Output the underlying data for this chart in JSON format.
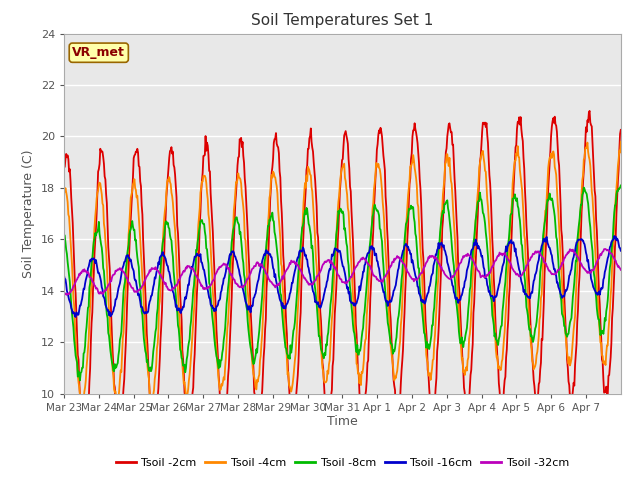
{
  "title": "Soil Temperatures Set 1",
  "xlabel": "Time",
  "ylabel": "Soil Temperature (C)",
  "ylim": [
    10,
    24
  ],
  "n_days": 16,
  "colors": [
    "#dd0000",
    "#ff8800",
    "#00bb00",
    "#0000cc",
    "#bb00bb"
  ],
  "labels": [
    "Tsoil -2cm",
    "Tsoil -4cm",
    "Tsoil -8cm",
    "Tsoil -16cm",
    "Tsoil -32cm"
  ],
  "xtick_labels": [
    "Mar 23",
    "Mar 24",
    "Mar 25",
    "Mar 26",
    "Mar 27",
    "Mar 28",
    "Mar 29",
    "Mar 30",
    "Mar 31",
    "Apr 1",
    "Apr 2",
    "Apr 3",
    "Apr 4",
    "Apr 5",
    "Apr 6",
    "Apr 7"
  ],
  "annotation_text": "VR_met",
  "fig_facecolor": "#ffffff",
  "ax_facecolor": "#e8e8e8",
  "grid_color": "#ffffff",
  "title_fontsize": 11,
  "label_fontsize": 9,
  "tick_fontsize": 7.5,
  "legend_fontsize": 8,
  "linewidth": 1.3
}
